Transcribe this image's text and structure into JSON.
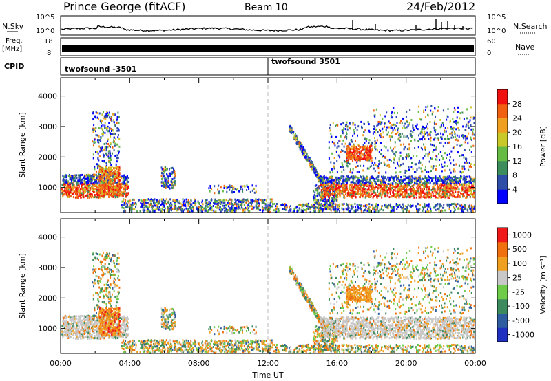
{
  "header": {
    "title": "Prince George (fitACF)",
    "beam": "Beam 10",
    "date": "24/Feb/2012"
  },
  "top_panels": {
    "nsky_label": "N.Sky",
    "nsky_ticks": [
      "10^5",
      "10^0"
    ],
    "nsearch_label": "N.Search",
    "nsearch_ticks": [
      "10^5",
      "10^0"
    ],
    "freq_label_1": "Freq.",
    "freq_label_2": "[MHz]",
    "freq_ticks": [
      "18",
      "8"
    ],
    "nave_label": "Nave",
    "nave_ticks": [
      "60",
      "0"
    ],
    "cpid_label": "CPID",
    "cpid_segments": [
      {
        "label": "twofsound -3501",
        "start_hour": 0
      },
      {
        "label": "twofsound 3501",
        "start_hour": 12
      }
    ]
  },
  "chart_data": [
    {
      "type": "heatmap",
      "title": "",
      "ylabel": "Slant Range [km]",
      "xlabel": "",
      "xlim": [
        0,
        24
      ],
      "ylim": [
        180,
        4600
      ],
      "yticks": [
        "1000",
        "2000",
        "3000",
        "4000"
      ],
      "colorbar_label": "Power [dB]",
      "colorbar_ticks": [
        "4",
        "8",
        "12",
        "16",
        "20",
        "24",
        "28"
      ],
      "colors": [
        "#0000ff",
        "#2e4ea8",
        "#3c8c5c",
        "#66bb44",
        "#c8c828",
        "#f0a020",
        "#f06010",
        "#f01010"
      ]
    },
    {
      "type": "heatmap",
      "title": "",
      "ylabel": "Slant Range [km]",
      "xlabel": "Time UT",
      "xlim": [
        0,
        24
      ],
      "ylim": [
        180,
        4600
      ],
      "yticks": [
        "1000",
        "2000",
        "3000",
        "4000"
      ],
      "xticks": [
        "00:00",
        "04:00",
        "08:00",
        "12:00",
        "16:00",
        "20:00",
        "00:00"
      ],
      "colorbar_label": "Velocity [m s^-1]",
      "colorbar_ticks": [
        "1000",
        "500",
        "100",
        "25",
        "-25",
        "-100",
        "-500",
        "-1000"
      ],
      "colors": [
        "#2030c0",
        "#2e5ea0",
        "#3c8a5e",
        "#6ecc48",
        "#c8c8c8",
        "#f0a020",
        "#f07010",
        "#f01818"
      ]
    }
  ]
}
